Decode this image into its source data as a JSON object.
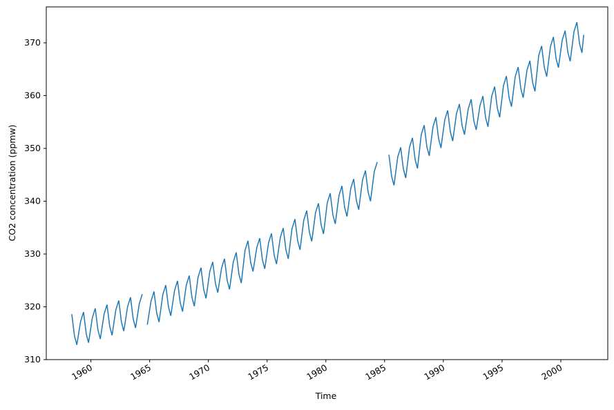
{
  "chart_data": {
    "type": "line",
    "xlabel": "Time",
    "ylabel": "CO2 concentration (ppmw)",
    "x": [
      1958.37,
      1958.6,
      1958.8,
      1959.12,
      1959.37,
      1959.6,
      1959.8,
      1960.12,
      1960.37,
      1960.6,
      1960.8,
      1961.12,
      1961.37,
      1961.6,
      1961.8,
      1962.12,
      1962.37,
      1962.6,
      1962.8,
      1963.12,
      1963.37,
      1963.6,
      1963.8,
      1964.12,
      1964.37,
      1964.6,
      1964.8,
      1965.12,
      1965.37,
      1965.6,
      1965.8,
      1966.12,
      1966.37,
      1966.6,
      1966.8,
      1967.12,
      1967.37,
      1967.6,
      1967.8,
      1968.12,
      1968.37,
      1968.6,
      1968.8,
      1969.12,
      1969.37,
      1969.6,
      1969.8,
      1970.12,
      1970.37,
      1970.6,
      1970.8,
      1971.12,
      1971.37,
      1971.6,
      1971.8,
      1972.12,
      1972.37,
      1972.6,
      1972.8,
      1973.12,
      1973.37,
      1973.6,
      1973.8,
      1974.12,
      1974.37,
      1974.6,
      1974.8,
      1975.12,
      1975.37,
      1975.6,
      1975.8,
      1976.12,
      1976.37,
      1976.6,
      1976.8,
      1977.12,
      1977.37,
      1977.6,
      1977.8,
      1978.12,
      1978.37,
      1978.6,
      1978.8,
      1979.12,
      1979.37,
      1979.6,
      1979.8,
      1980.12,
      1980.37,
      1980.6,
      1980.8,
      1981.12,
      1981.37,
      1981.6,
      1981.8,
      1982.12,
      1982.37,
      1982.6,
      1982.8,
      1983.12,
      1983.37,
      1983.6,
      1983.8,
      1984.12,
      1984.37,
      1984.6,
      1985.37,
      1985.6,
      1985.8,
      1986.12,
      1986.37,
      1986.6,
      1986.8,
      1987.12,
      1987.37,
      1987.6,
      1987.8,
      1988.12,
      1988.37,
      1988.6,
      1988.8,
      1989.12,
      1989.37,
      1989.6,
      1989.8,
      1990.12,
      1990.37,
      1990.6,
      1990.8,
      1991.12,
      1991.37,
      1991.6,
      1991.8,
      1992.12,
      1992.37,
      1992.6,
      1992.8,
      1993.12,
      1993.37,
      1993.6,
      1993.8,
      1994.12,
      1994.37,
      1994.6,
      1994.8,
      1995.12,
      1995.37,
      1995.6,
      1995.8,
      1996.12,
      1996.37,
      1996.6,
      1996.8,
      1997.12,
      1997.37,
      1997.6,
      1997.8,
      1998.12,
      1998.37,
      1998.6,
      1998.8,
      1999.12,
      1999.37,
      1999.6,
      1999.8,
      2000.12,
      2000.37,
      2000.6,
      2000.8,
      2001.12,
      2001.37,
      2001.6,
      2001.8,
      2001.95
    ],
    "series": [
      {
        "color": "#1f77b4",
        "values": [
          318.6,
          314.5,
          312.8,
          317.2,
          319.0,
          314.9,
          313.2,
          317.9,
          319.7,
          315.6,
          313.9,
          318.6,
          320.4,
          316.3,
          314.6,
          319.4,
          321.2,
          317.1,
          315.4,
          320.0,
          321.8,
          317.7,
          316.0,
          320.6,
          322.4,
          null,
          316.6,
          321.1,
          322.9,
          318.8,
          317.1,
          322.3,
          324.1,
          320.0,
          318.3,
          323.1,
          324.9,
          320.8,
          319.1,
          324.1,
          325.9,
          321.8,
          320.1,
          325.6,
          327.4,
          323.3,
          321.6,
          326.7,
          328.5,
          324.4,
          322.7,
          327.3,
          329.1,
          325.0,
          323.3,
          328.5,
          330.3,
          326.2,
          324.5,
          330.7,
          332.5,
          328.4,
          326.7,
          331.2,
          333.0,
          328.9,
          327.2,
          332.1,
          333.9,
          329.8,
          328.1,
          333.1,
          334.9,
          330.8,
          329.1,
          334.8,
          336.6,
          332.5,
          330.8,
          336.4,
          338.2,
          334.1,
          332.4,
          337.8,
          339.6,
          335.5,
          333.8,
          339.7,
          341.5,
          337.4,
          335.7,
          341.1,
          342.9,
          338.8,
          337.1,
          342.4,
          344.2,
          340.1,
          338.4,
          344.0,
          345.8,
          341.7,
          340.0,
          345.6,
          347.4,
          null,
          348.8,
          344.7,
          343.0,
          348.4,
          350.2,
          346.1,
          344.4,
          350.2,
          352.0,
          347.9,
          346.2,
          352.6,
          354.4,
          350.3,
          348.6,
          354.1,
          355.9,
          351.8,
          350.1,
          355.4,
          357.2,
          353.1,
          351.4,
          356.6,
          358.4,
          354.3,
          352.6,
          357.5,
          359.3,
          355.2,
          353.5,
          358.1,
          359.9,
          355.8,
          354.1,
          359.9,
          361.7,
          357.6,
          355.9,
          361.9,
          363.7,
          359.6,
          357.9,
          363.6,
          365.4,
          361.3,
          359.6,
          364.8,
          366.6,
          362.5,
          360.8,
          367.6,
          369.4,
          365.3,
          363.6,
          369.3,
          371.1,
          367.0,
          365.3,
          370.5,
          372.3,
          368.2,
          366.5,
          372.1,
          373.9,
          369.8,
          368.1,
          371.5
        ]
      }
    ],
    "xlim": [
      1956.2,
      2004.0
    ],
    "xticks": [
      1960,
      1965,
      1970,
      1975,
      1980,
      1985,
      1990,
      1995,
      2000
    ],
    "ylim": [
      310,
      376.8
    ],
    "yticks": [
      310,
      320,
      330,
      340,
      350,
      360,
      370
    ]
  }
}
